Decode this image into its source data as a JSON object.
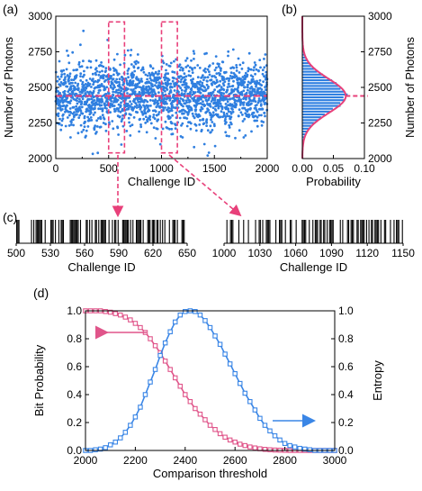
{
  "colors": {
    "scatter": "#2f7fe0",
    "mean": "#e8407a",
    "box": "#e8407a",
    "hist": "#2f7fe0",
    "pinkCurve": "#e0558a",
    "blueCurve": "#3a86e6"
  },
  "panel_labels": {
    "a": "(a)",
    "b": "(b)",
    "c": "(c)",
    "d": "(d)"
  },
  "chart_data": [
    {
      "id": "a",
      "type": "scatter",
      "xlabel": "Challenge ID",
      "ylabel": "Number of Photons",
      "xlim": [
        0,
        2000
      ],
      "ylim": [
        2000,
        3000
      ],
      "xticks": [
        "0",
        "500",
        "1000",
        "1500",
        "2000"
      ],
      "yticks": [
        "2000",
        "2250",
        "2500",
        "2750",
        "3000"
      ],
      "n_points": 2000,
      "mean": 2440,
      "std": 120,
      "highlight_ranges": [
        [
          500,
          650
        ],
        [
          1000,
          1150
        ]
      ],
      "mean_line": true
    },
    {
      "id": "b",
      "type": "bar",
      "orientation": "horizontal histogram",
      "xlabel": "Probability",
      "ylabel": "Number of Photons",
      "xlim": [
        0,
        0.1
      ],
      "ylim": [
        2000,
        3000
      ],
      "xticks": [
        "0.00",
        "0.05",
        "0.10"
      ],
      "yticks": [
        "2000",
        "2250",
        "2500",
        "2750",
        "3000"
      ],
      "peak_probability": 0.07,
      "mean": 2440,
      "std": 120
    },
    {
      "id": "c1",
      "type": "bar",
      "xlabel": "Challenge ID",
      "xlim": [
        500,
        650
      ],
      "xticks": [
        "500",
        "530",
        "560",
        "590",
        "620",
        "650"
      ]
    },
    {
      "id": "c2",
      "type": "bar",
      "xlabel": "Challenge ID",
      "xlim": [
        1000,
        1150
      ],
      "xticks": [
        "1000",
        "1030",
        "1060",
        "1090",
        "1120",
        "1150"
      ]
    },
    {
      "id": "d",
      "type": "line",
      "xlabel": "Comparison threshold",
      "ylabel": "Bit Probability",
      "y2label": "Entropy",
      "xlim": [
        2000,
        3000
      ],
      "ylim": [
        0,
        1
      ],
      "xticks": [
        "2000",
        "2200",
        "2400",
        "2600",
        "2800",
        "3000"
      ],
      "yticks": [
        "0.0",
        "0.2",
        "0.4",
        "0.6",
        "0.8",
        "1.0"
      ],
      "x": [
        2000,
        2020,
        2040,
        2060,
        2080,
        2100,
        2120,
        2140,
        2160,
        2180,
        2200,
        2220,
        2240,
        2260,
        2280,
        2300,
        2320,
        2340,
        2360,
        2380,
        2400,
        2420,
        2440,
        2460,
        2480,
        2500,
        2520,
        2540,
        2560,
        2580,
        2600,
        2620,
        2640,
        2660,
        2680,
        2700,
        2720,
        2740,
        2760,
        2780,
        2800,
        2820,
        2840,
        2860,
        2880,
        2900,
        2920,
        2940,
        2960,
        2980,
        3000
      ],
      "series": [
        {
          "axis": "left",
          "marker": "square",
          "values": [
            1.0,
            1.0,
            1.0,
            1.0,
            0.995,
            0.99,
            0.98,
            0.97,
            0.955,
            0.935,
            0.91,
            0.88,
            0.845,
            0.8,
            0.75,
            0.7,
            0.64,
            0.58,
            0.52,
            0.46,
            0.4,
            0.35,
            0.3,
            0.26,
            0.22,
            0.18,
            0.15,
            0.12,
            0.095,
            0.075,
            0.06,
            0.045,
            0.035,
            0.025,
            0.018,
            0.012,
            0.008,
            0.005,
            0.003,
            0.002,
            0.001,
            0.0,
            0.0,
            0.0,
            0.0,
            0.0,
            0.0,
            0.0,
            0.0,
            0.0,
            0.0
          ]
        },
        {
          "axis": "right",
          "marker": "square",
          "values": [
            0.0,
            0.0,
            0.005,
            0.01,
            0.02,
            0.04,
            0.06,
            0.09,
            0.13,
            0.18,
            0.24,
            0.31,
            0.4,
            0.49,
            0.58,
            0.68,
            0.77,
            0.85,
            0.92,
            0.97,
            0.995,
            1.0,
            0.995,
            0.97,
            0.93,
            0.88,
            0.82,
            0.76,
            0.69,
            0.62,
            0.55,
            0.48,
            0.41,
            0.35,
            0.29,
            0.23,
            0.18,
            0.14,
            0.105,
            0.075,
            0.05,
            0.035,
            0.025,
            0.015,
            0.01,
            0.005,
            0.0,
            0.0,
            0.0,
            0.0,
            0.0
          ]
        }
      ]
    }
  ]
}
